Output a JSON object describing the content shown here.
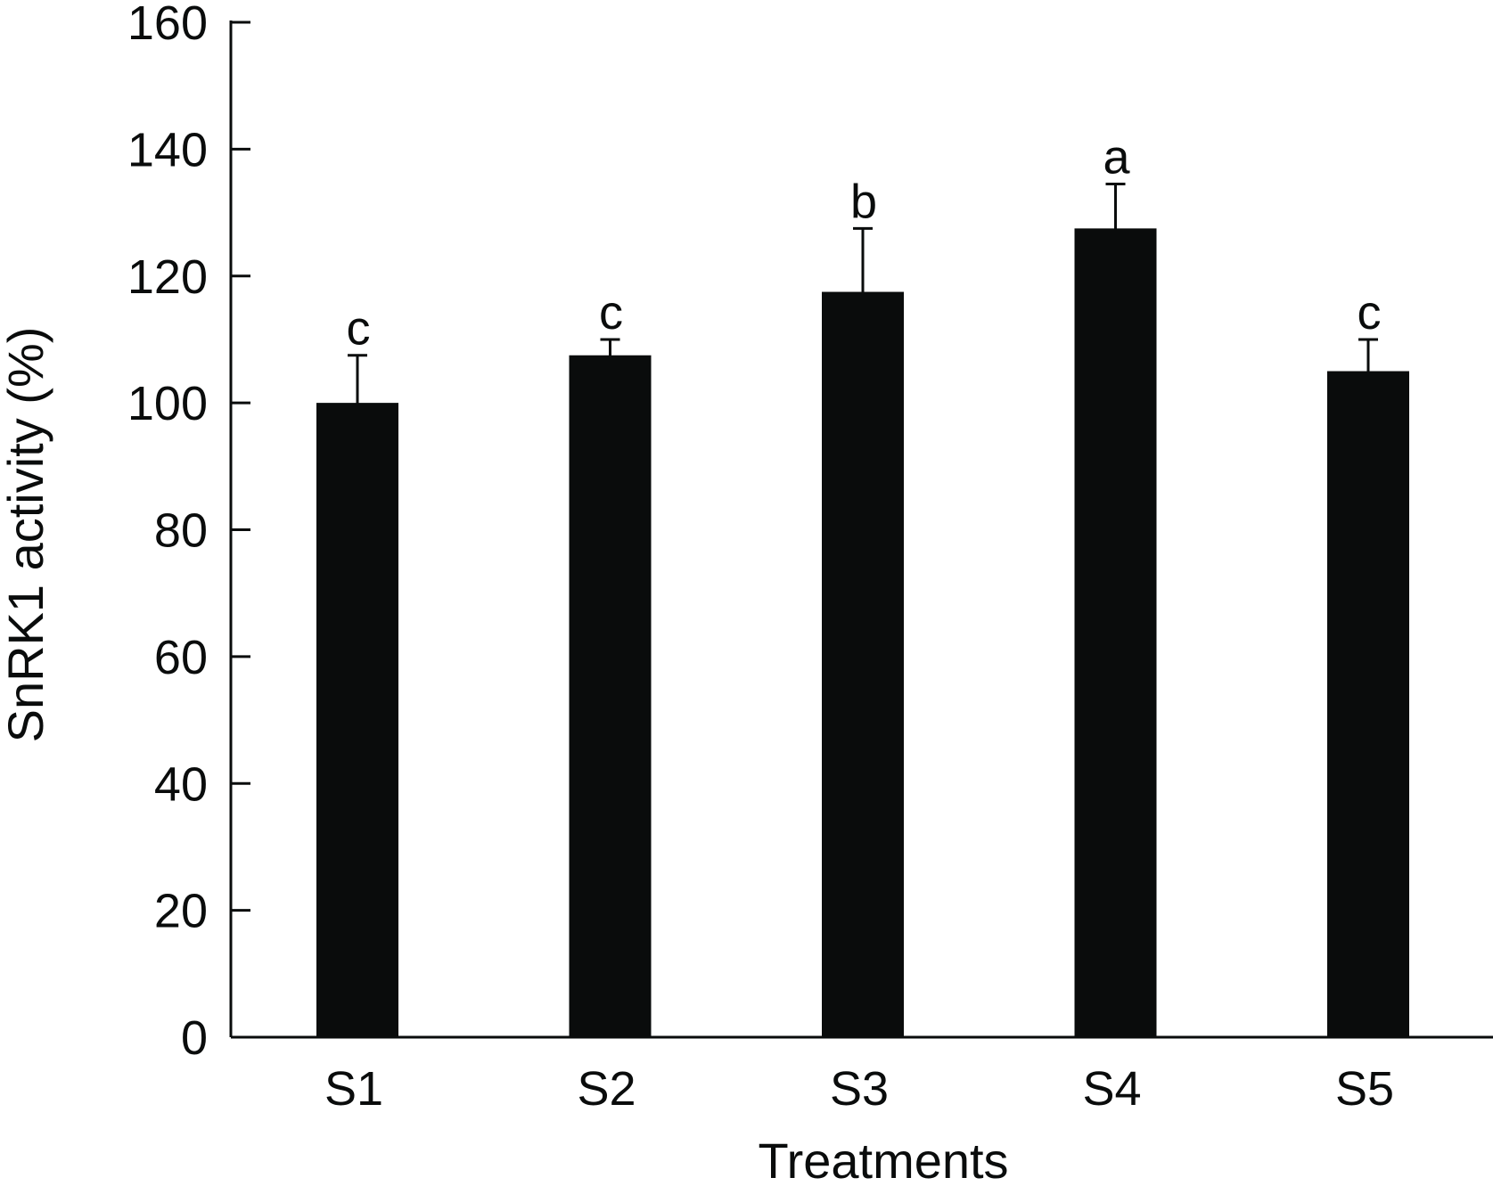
{
  "chart_data": {
    "type": "bar",
    "title": "",
    "xlabel": "Treatments",
    "ylabel": "SnRK1 activity (%)",
    "ylim": [
      0,
      160
    ],
    "yticks": [
      0,
      20,
      40,
      60,
      80,
      100,
      120,
      140,
      160
    ],
    "categories": [
      "S1",
      "S2",
      "S3",
      "S4",
      "S5"
    ],
    "values": [
      100,
      107.5,
      117.5,
      127.5,
      105
    ],
    "errors": [
      7.5,
      2.5,
      10,
      7,
      5
    ],
    "significance": [
      "c",
      "c",
      "b",
      "a",
      "c"
    ],
    "grid": false,
    "legend": "none",
    "bar_color": "#0a0c0c"
  }
}
